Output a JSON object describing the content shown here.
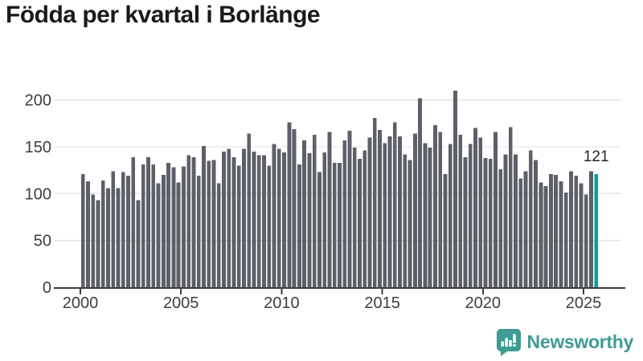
{
  "title": "Födda per kvartal i Borlänge",
  "colors": {
    "bar": "#5e6069",
    "highlight": "#00a29e",
    "grid": "#e2e2e2",
    "axis": "#3f3f3f",
    "tick_text": "#3d3d3d",
    "title_text": "#1a1a1a",
    "brand": "#3f9b93"
  },
  "chart_data": {
    "type": "bar",
    "title": "Födda per kvartal i Borlänge",
    "xlabel": "",
    "ylabel": "",
    "x_start": "2000-Q1",
    "x_end": "2025-Q3",
    "x_tick_labels": [
      "2000",
      "2005",
      "2010",
      "2015",
      "2020",
      "2025"
    ],
    "x_tick_quarter_index": [
      0,
      20,
      40,
      60,
      80,
      100
    ],
    "yticks": [
      0,
      50,
      100,
      150,
      200
    ],
    "y_tick_labels": [
      "0",
      "50",
      "100",
      "150",
      "200"
    ],
    "ylim": [
      0,
      215
    ],
    "grid": "horizontal",
    "highlight_index": 102,
    "highlight_value_label": "121",
    "values": [
      121,
      113,
      99,
      93,
      114,
      106,
      124,
      106,
      123,
      119,
      139,
      93,
      131,
      139,
      131,
      111,
      120,
      133,
      128,
      112,
      129,
      141,
      139,
      119,
      151,
      135,
      136,
      111,
      145,
      148,
      139,
      130,
      148,
      164,
      145,
      141,
      141,
      130,
      153,
      148,
      144,
      176,
      169,
      131,
      157,
      143,
      163,
      123,
      144,
      166,
      133,
      133,
      157,
      167,
      149,
      137,
      146,
      160,
      181,
      168,
      154,
      161,
      176,
      161,
      142,
      136,
      164,
      202,
      154,
      149,
      173,
      166,
      121,
      153,
      210,
      163,
      139,
      153,
      170,
      160,
      138,
      137,
      166,
      126,
      142,
      171,
      142,
      116,
      124,
      146,
      136,
      112,
      108,
      121,
      120,
      113,
      101,
      124,
      119,
      111,
      99,
      124,
      121
    ]
  },
  "footer": {
    "brand": "Newsworthy",
    "logo_icon": "bar-chart-speech-bubble-icon"
  }
}
